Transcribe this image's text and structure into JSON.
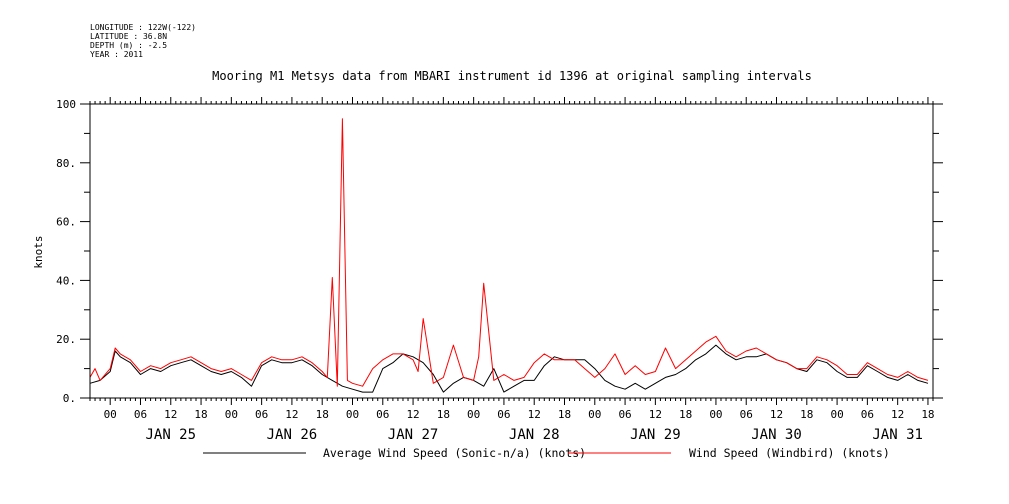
{
  "meta": {
    "longitude": "LONGITUDE : 122W(-122)",
    "latitude": "LATITUDE : 36.8N",
    "depth": "DEPTH (m) : -2.5",
    "year": "YEAR : 2011"
  },
  "chart_data": {
    "type": "line",
    "title": "Mooring M1 Metsys data from MBARI instrument id 1396 at original sampling intervals",
    "ylabel": "knots",
    "xlabel": "",
    "ylim": [
      0,
      100
    ],
    "y_ticks": [
      "0.",
      "20.",
      "40.",
      "60.",
      "80.",
      "100"
    ],
    "x_hour_ticks": [
      "00",
      "06",
      "12",
      "18",
      "00",
      "06",
      "12",
      "18",
      "00",
      "06",
      "12",
      "18",
      "00",
      "06",
      "12",
      "18",
      "00",
      "06",
      "12",
      "18",
      "00",
      "06",
      "12",
      "18",
      "00",
      "06",
      "12",
      "18"
    ],
    "x_day_labels": [
      "JAN 25",
      "JAN 26",
      "JAN 27",
      "JAN 28",
      "JAN 29",
      "JAN 30",
      "JAN 31"
    ],
    "x_range_hours": [
      -4,
      163
    ],
    "grid": false,
    "legend_position": "bottom",
    "series": [
      {
        "name": "Average Wind Speed (Sonic-n/a) (knots)",
        "color": "#000000",
        "x": [
          -4,
          -2,
          0,
          1,
          2,
          4,
          6,
          8,
          10,
          12,
          14,
          16,
          18,
          20,
          22,
          24,
          26,
          28,
          30,
          32,
          34,
          36,
          38,
          40,
          42,
          44,
          46,
          48,
          50,
          52,
          54,
          56,
          58,
          60,
          62,
          64,
          66,
          68,
          70,
          72,
          74,
          76,
          78,
          80,
          82,
          84,
          86,
          88,
          90,
          92,
          94,
          96,
          98,
          100,
          102,
          104,
          106,
          108,
          110,
          112,
          114,
          116,
          118,
          120,
          122,
          124,
          126,
          128,
          130,
          132,
          134,
          136,
          138,
          140,
          142,
          144,
          146,
          148,
          150,
          152,
          154,
          156,
          158,
          160,
          162
        ],
        "values": [
          5,
          6,
          9,
          16,
          14,
          12,
          8,
          10,
          9,
          11,
          12,
          13,
          11,
          9,
          8,
          9,
          7,
          4,
          11,
          13,
          12,
          12,
          13,
          11,
          8,
          6,
          4,
          3,
          2,
          2,
          10,
          12,
          15,
          14,
          12,
          8,
          2,
          5,
          7,
          6,
          4,
          10,
          2,
          4,
          6,
          6,
          11,
          14,
          13,
          13,
          13,
          10,
          6,
          4,
          3,
          5,
          3,
          5,
          7,
          8,
          10,
          13,
          15,
          18,
          15,
          13,
          14,
          14,
          15,
          13,
          12,
          10,
          9,
          13,
          12,
          9,
          7,
          7,
          11,
          9,
          7,
          6,
          8,
          6,
          5
        ]
      },
      {
        "name": "Wind Speed (Windbird) (knots)",
        "color": "#ff0000",
        "x": [
          -4,
          -3,
          -2,
          0,
          1,
          2,
          4,
          6,
          8,
          10,
          12,
          14,
          16,
          18,
          20,
          22,
          24,
          26,
          28,
          30,
          32,
          34,
          36,
          38,
          40,
          42,
          43,
          44,
          45,
          46,
          47,
          48,
          50,
          52,
          54,
          56,
          58,
          60,
          61,
          62,
          64,
          66,
          68,
          70,
          72,
          73,
          74,
          76,
          78,
          80,
          82,
          84,
          86,
          88,
          90,
          92,
          94,
          96,
          98,
          100,
          102,
          104,
          106,
          108,
          110,
          112,
          114,
          116,
          118,
          120,
          122,
          124,
          126,
          128,
          130,
          132,
          134,
          136,
          138,
          140,
          142,
          144,
          146,
          148,
          150,
          152,
          154,
          156,
          158,
          160,
          162
        ],
        "values": [
          7,
          10,
          6,
          10,
          17,
          15,
          13,
          9,
          11,
          10,
          12,
          13,
          14,
          12,
          10,
          9,
          10,
          8,
          6,
          12,
          14,
          13,
          13,
          14,
          12,
          9,
          7,
          41,
          4,
          95,
          6,
          5,
          4,
          10,
          13,
          15,
          15,
          13,
          9,
          27,
          5,
          7,
          18,
          7,
          6,
          14,
          39,
          6,
          8,
          6,
          7,
          12,
          15,
          13,
          13,
          13,
          10,
          7,
          10,
          15,
          8,
          11,
          8,
          9,
          17,
          10,
          13,
          16,
          19,
          21,
          16,
          14,
          16,
          17,
          15,
          13,
          12,
          10,
          10,
          14,
          13,
          11,
          8,
          8,
          12,
          10,
          8,
          7,
          9,
          7,
          6
        ]
      }
    ]
  }
}
